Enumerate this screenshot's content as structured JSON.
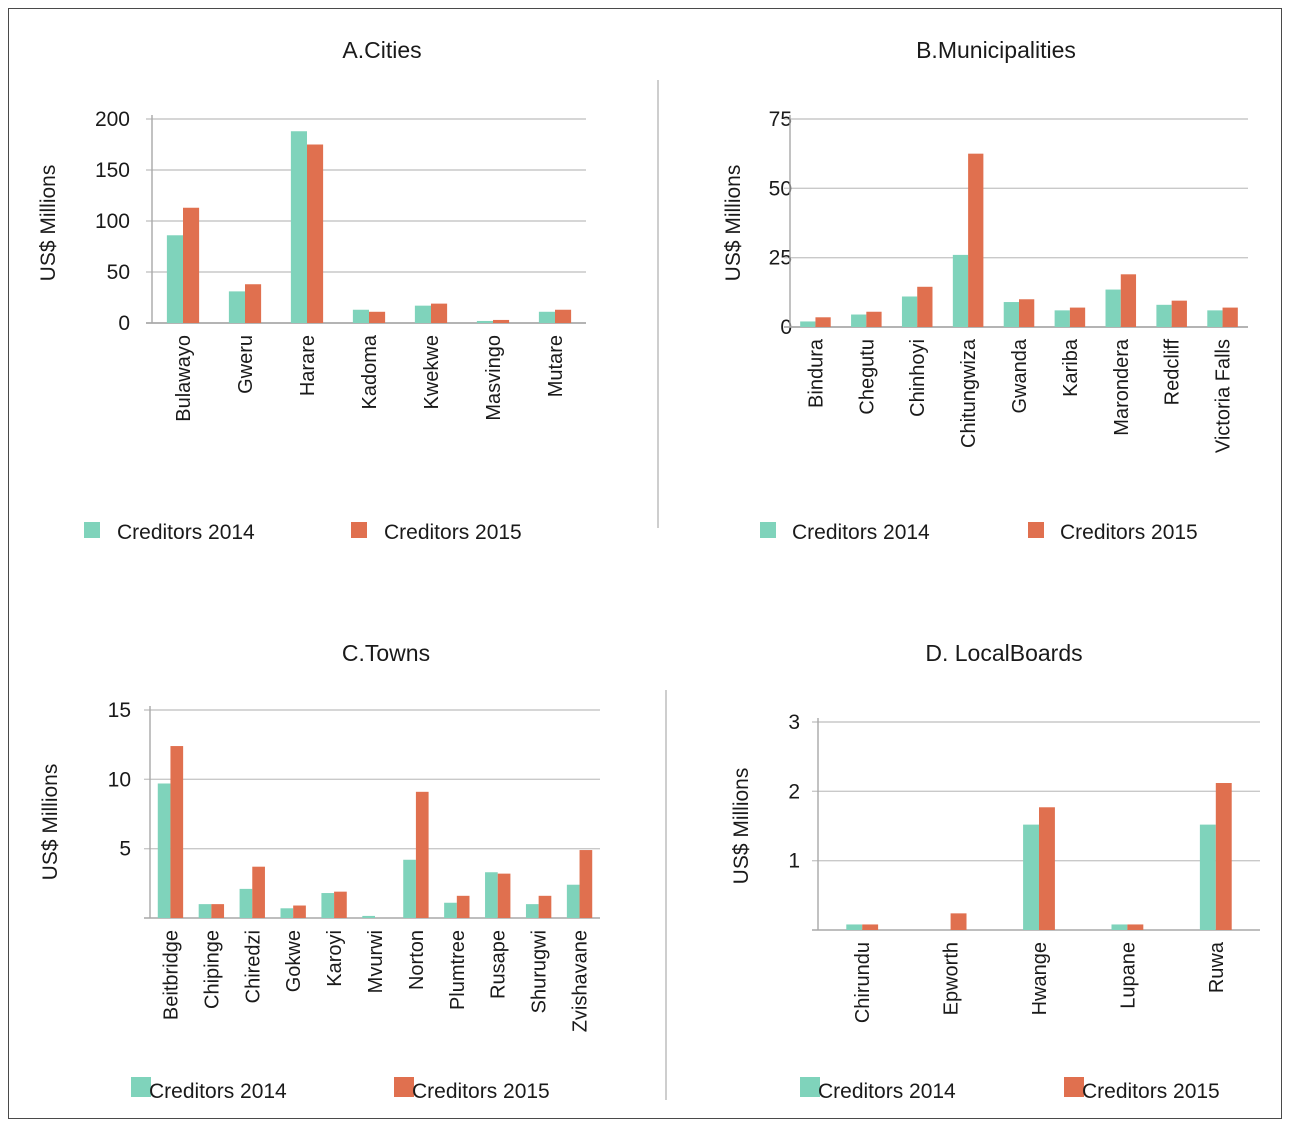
{
  "colors": {
    "creditors_2014": "#7fd3bb",
    "creditors_2015": "#e0704f"
  },
  "chart_data": [
    {
      "id": "cities",
      "type": "bar",
      "title": "A.Cities",
      "ylabel": "US$ Millions",
      "ylim": [
        0,
        200
      ],
      "yticks": [
        0,
        50,
        100,
        150,
        200
      ],
      "grid": true,
      "legend_position": "bottom",
      "categories": [
        "Bulawayo",
        "Gweru",
        "Harare",
        "Kadoma",
        "Kwekwe",
        "Masvingo",
        "Mutare"
      ],
      "series": [
        {
          "name": "Creditors 2014",
          "values": [
            86,
            31,
            188,
            13,
            17,
            2,
            11
          ]
        },
        {
          "name": "Creditors 2015",
          "values": [
            113,
            38,
            175,
            11,
            19,
            3,
            13
          ]
        }
      ]
    },
    {
      "id": "municipalities",
      "type": "bar",
      "title": "B.Municipalities",
      "ylabel": "US$ Millions",
      "ylim": [
        0,
        75
      ],
      "yticks": [
        0,
        25,
        50,
        75
      ],
      "grid": true,
      "legend_position": "bottom",
      "categories": [
        "Bindura",
        "Chegutu",
        "Chinhoyi",
        "Chitungwiza",
        "Gwanda",
        "Kariba",
        "Marondera",
        "Redcliff",
        "Victoria Falls"
      ],
      "series": [
        {
          "name": "Creditors 2014",
          "values": [
            2,
            4.5,
            11,
            26,
            9,
            6,
            13.5,
            8,
            6
          ]
        },
        {
          "name": "Creditors 2015",
          "values": [
            3.5,
            5.5,
            14.5,
            62.5,
            10,
            7,
            19,
            9.5,
            7
          ]
        }
      ]
    },
    {
      "id": "towns",
      "type": "bar",
      "title": "C.Towns",
      "ylabel": "US$ Millions",
      "ylim": [
        0,
        15
      ],
      "yticks": [
        5,
        10,
        15
      ],
      "grid": true,
      "legend_position": "bottom",
      "categories": [
        "Beitbridge",
        "Chipinge",
        "Chiredzi",
        "Gokwe",
        "Karoyi",
        "Mvurwi",
        "Norton",
        "Plumtree",
        "Rusape",
        "Shurugwi",
        "Zvishavane"
      ],
      "series": [
        {
          "name": "Creditors 2014",
          "values": [
            9.7,
            1,
            2.1,
            0.7,
            1.8,
            0.15,
            4.2,
            1.1,
            3.3,
            1,
            2.4
          ]
        },
        {
          "name": "Creditors 2015",
          "values": [
            12.4,
            1,
            3.7,
            0.9,
            1.9,
            0,
            9.1,
            1.6,
            3.2,
            1.6,
            4.9
          ]
        }
      ]
    },
    {
      "id": "local-boards",
      "type": "bar",
      "title": "D. LocalBoards",
      "ylabel": "US$ Millions",
      "ylim": [
        0,
        3
      ],
      "yticks": [
        1,
        2,
        3
      ],
      "grid": true,
      "legend_position": "bottom",
      "categories": [
        "Chirundu",
        "Epworth",
        "Hwange",
        "Lupane",
        "Ruwa"
      ],
      "series": [
        {
          "name": "Creditors 2014",
          "values": [
            0.08,
            0,
            1.52,
            0.08,
            1.52
          ]
        },
        {
          "name": "Creditors 2015",
          "values": [
            0.08,
            0.24,
            1.77,
            0.08,
            2.12
          ]
        }
      ]
    }
  ]
}
